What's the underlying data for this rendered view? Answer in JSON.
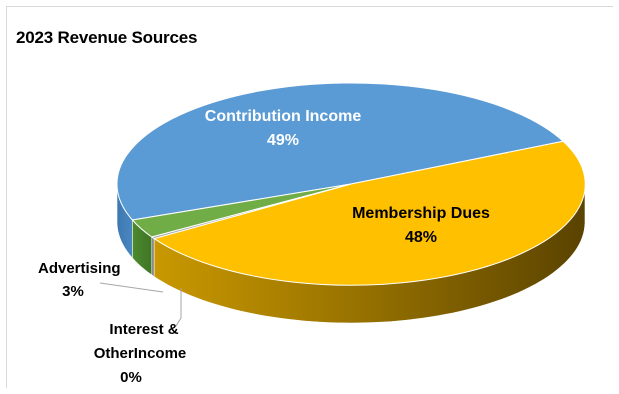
{
  "chart_data": {
    "type": "pie",
    "title": "2023 Revenue Sources",
    "slices": [
      {
        "label": "Contribution Income",
        "percent_label": "49%",
        "value": 49,
        "color": "#5b9bd5"
      },
      {
        "label": "Membership Dues",
        "percent_label": "48%",
        "value": 48,
        "color": "#ffc000"
      },
      {
        "label": "Advertising",
        "percent_label": "3%",
        "value": 3,
        "color": "#70ad47"
      },
      {
        "label": "Interest & OtherIncome",
        "label_lines": [
          "Interest &",
          "OtherIncome"
        ],
        "percent_label": "0%",
        "value": 0.3,
        "color": "#a5a5a5"
      }
    ],
    "style": "3d-pie",
    "legend": "none"
  }
}
